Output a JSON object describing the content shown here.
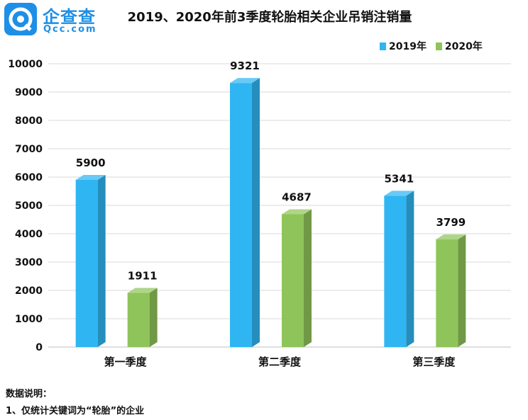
{
  "logo": {
    "name": "企查查",
    "domain": "Qcc.com"
  },
  "notes": {
    "heading": "数据说明：",
    "lines": [
      "1、仅统计关键词为“轮胎”的企业"
    ]
  },
  "chart_data": {
    "type": "bar",
    "title": "2019、2020年前3季度轮胎相关企业吊销注销量",
    "categories": [
      "第一季度",
      "第二季度",
      "第三季度"
    ],
    "series": [
      {
        "name": "2019年",
        "values": [
          5900,
          9321,
          5341
        ],
        "color": "#2fb6f2"
      },
      {
        "name": "2020年",
        "values": [
          1911,
          4687,
          3799
        ],
        "color": "#8fc45a"
      }
    ],
    "ylim": [
      0,
      10000
    ],
    "yticks": [
      0,
      1000,
      2000,
      3000,
      4000,
      5000,
      6000,
      7000,
      8000,
      9000,
      10000
    ],
    "grid": true,
    "legend": "top-right",
    "xlabel": "",
    "ylabel": ""
  }
}
